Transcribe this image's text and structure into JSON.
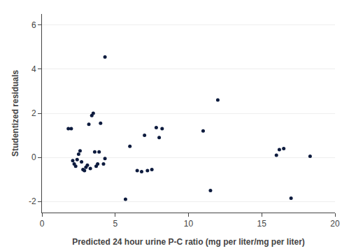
{
  "chart_data": {
    "type": "scatter",
    "x": [
      1.8,
      2.0,
      2.1,
      2.2,
      2.3,
      2.4,
      2.5,
      2.6,
      2.7,
      2.8,
      2.9,
      3.0,
      3.1,
      3.2,
      3.3,
      3.4,
      3.5,
      3.6,
      3.7,
      3.8,
      3.9,
      4.0,
      4.2,
      4.3,
      4.3,
      5.7,
      6.0,
      6.5,
      6.8,
      7.0,
      7.2,
      7.5,
      7.8,
      8.0,
      8.2,
      11.0,
      11.5,
      12.0,
      16.0,
      16.2,
      16.5,
      17.0,
      18.3
    ],
    "values": [
      1.3,
      1.3,
      -0.15,
      -0.3,
      -0.4,
      -0.1,
      0.15,
      0.3,
      -0.2,
      -0.55,
      -0.6,
      -0.45,
      -0.35,
      1.5,
      -0.5,
      1.9,
      2.0,
      0.25,
      -0.4,
      -0.3,
      0.25,
      1.55,
      -0.3,
      -0.05,
      4.55,
      -1.9,
      0.5,
      -0.6,
      -0.65,
      1.0,
      -0.6,
      -0.55,
      1.35,
      0.9,
      1.3,
      1.2,
      -1.5,
      2.6,
      0.1,
      0.35,
      0.4,
      -1.85,
      0.05
    ],
    "color": "#0d1b3e",
    "xlabel": "Predicted 24 hour urine P-C ratio (mg per liter/mg per liter)",
    "ylabel": "Studentized residuals",
    "xlim": [
      0,
      20
    ],
    "ylim": [
      -2.5,
      6.5
    ],
    "xticks": [
      0,
      5,
      10,
      15,
      20
    ],
    "yticks": [
      -2,
      0,
      2,
      4,
      6
    ],
    "grid": "y"
  }
}
